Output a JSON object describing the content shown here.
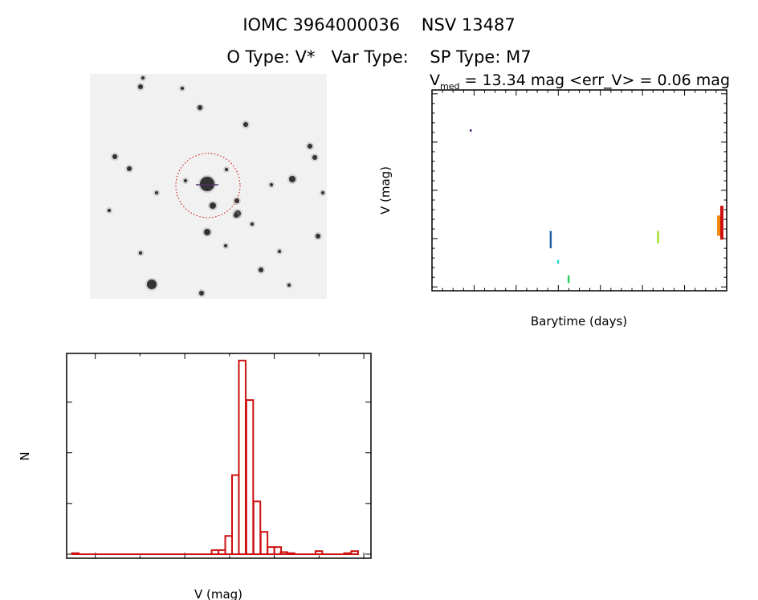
{
  "header": {
    "title": "IOMC 3964000036    NSV 13487",
    "subtitle": "O Type: V*   Var Type:    SP Type: M7"
  },
  "cutout": {
    "target_marker_color": "#cc0000"
  },
  "chart_data": [
    {
      "type": "scatter",
      "name": "light-curve",
      "title_main": "V",
      "title_sub": "med",
      "title_rest": " = 13.34 mag <err_V> = 0.06 mag",
      "xlabel": "Barytime (days)",
      "ylabel": "V (mag)",
      "xlim": [
        1600,
        3000
      ],
      "ylim": [
        14.04,
        11.96
      ],
      "xticks": [
        1600,
        1800,
        2000,
        2200,
        2400,
        2600,
        2800,
        3000
      ],
      "yticks": [
        "12.0",
        "12.5",
        "13.0",
        "13.5",
        "14.0"
      ],
      "series": [
        {
          "color": "#3a0a6e",
          "x": 1785,
          "y": [
            12.37,
            12.39
          ]
        },
        {
          "color": "#1f5fa8",
          "x": 2165,
          "y": [
            13.42,
            13.6
          ]
        },
        {
          "color": "#33d6d6",
          "x": 2200,
          "y": [
            13.72,
            13.76
          ]
        },
        {
          "color": "#33cc55",
          "x": 2250,
          "y": [
            13.88,
            13.96
          ]
        },
        {
          "color": "#a8e02a",
          "x": 2675,
          "y": [
            13.42,
            13.55
          ]
        },
        {
          "color": "#f08a10",
          "x": 2960,
          "y": [
            13.26,
            13.47
          ]
        },
        {
          "color": "#cc1010",
          "x": 2975,
          "y": [
            13.16,
            13.51
          ]
        }
      ]
    },
    {
      "type": "bar",
      "name": "histogram",
      "xlabel": "V (mag)",
      "ylabel": "N",
      "xlim": [
        12.34,
        14.04
      ],
      "ylim": [
        -4,
        198
      ],
      "xticks": [
        "12.5",
        "13.0",
        "13.5",
        "14.0"
      ],
      "yticks": [
        0,
        50,
        100,
        150
      ],
      "bin_width": 0.038,
      "color": "#cc1010",
      "bins": [
        {
          "left": 12.37,
          "count": 1
        },
        {
          "left": 13.15,
          "count": 4
        },
        {
          "left": 13.188,
          "count": 4
        },
        {
          "left": 13.226,
          "count": 18
        },
        {
          "left": 13.264,
          "count": 78
        },
        {
          "left": 13.302,
          "count": 191
        },
        {
          "left": 13.344,
          "count": 152
        },
        {
          "left": 13.384,
          "count": 52
        },
        {
          "left": 13.424,
          "count": 22
        },
        {
          "left": 13.462,
          "count": 7
        },
        {
          "left": 13.5,
          "count": 7
        },
        {
          "left": 13.535,
          "count": 2
        },
        {
          "left": 13.575,
          "count": 1
        },
        {
          "left": 13.73,
          "count": 3
        },
        {
          "left": 13.89,
          "count": 1
        },
        {
          "left": 13.93,
          "count": 3
        }
      ]
    }
  ]
}
